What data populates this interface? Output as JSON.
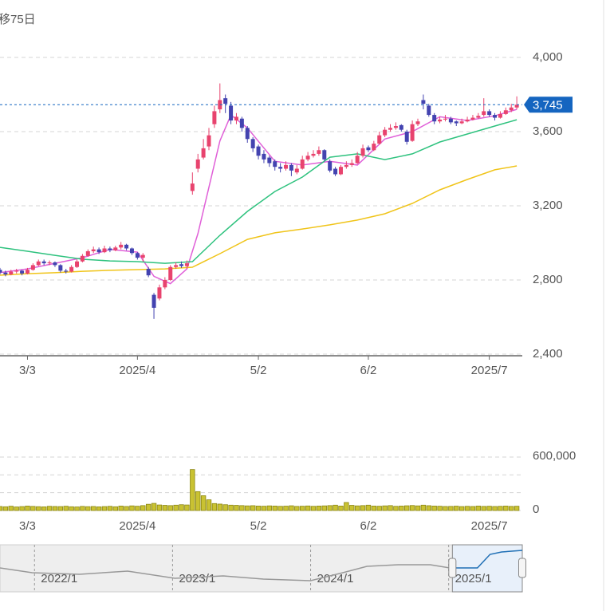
{
  "chart_data": {
    "type": "candlestick",
    "title": "移75日",
    "xlim": [
      0,
      95
    ],
    "xticks": [
      {
        "value": 5,
        "label": "3/3"
      },
      {
        "value": 25,
        "label": "2025/4"
      },
      {
        "value": 47,
        "label": "5/2"
      },
      {
        "value": 67,
        "label": "6/2"
      },
      {
        "value": 89,
        "label": "2025/7"
      }
    ],
    "ylim": [
      2400,
      4000
    ],
    "yticks": [
      {
        "value": 2400,
        "label": "2,400"
      },
      {
        "value": 2800,
        "label": "2,800"
      },
      {
        "value": 3200,
        "label": "3,200"
      },
      {
        "value": 3600,
        "label": "3,600"
      },
      {
        "value": 4000,
        "label": "4,000"
      }
    ],
    "grid": true,
    "up_color": "#e8436e",
    "down_color": "#4343b0",
    "last_price": {
      "value": 3745,
      "label": "3,745",
      "color": "#1565c0"
    },
    "ohlc": [
      [
        2855,
        2865,
        2830,
        2840
      ],
      [
        2840,
        2850,
        2820,
        2830
      ],
      [
        2830,
        2855,
        2825,
        2845
      ],
      [
        2845,
        2860,
        2835,
        2850
      ],
      [
        2850,
        2855,
        2825,
        2835
      ],
      [
        2835,
        2865,
        2830,
        2855
      ],
      [
        2855,
        2890,
        2850,
        2880
      ],
      [
        2880,
        2910,
        2875,
        2900
      ],
      [
        2900,
        2910,
        2880,
        2890
      ],
      [
        2890,
        2905,
        2880,
        2895
      ],
      [
        2895,
        2900,
        2870,
        2880
      ],
      [
        2880,
        2885,
        2840,
        2850
      ],
      [
        2850,
        2860,
        2835,
        2845
      ],
      [
        2845,
        2880,
        2840,
        2870
      ],
      [
        2870,
        2910,
        2865,
        2900
      ],
      [
        2900,
        2940,
        2895,
        2930
      ],
      [
        2930,
        2965,
        2925,
        2955
      ],
      [
        2955,
        2980,
        2945,
        2965
      ],
      [
        2965,
        2975,
        2940,
        2950
      ],
      [
        2950,
        2985,
        2945,
        2970
      ],
      [
        2970,
        2980,
        2950,
        2960
      ],
      [
        2960,
        2985,
        2955,
        2975
      ],
      [
        2975,
        3005,
        2965,
        2990
      ],
      [
        2990,
        2995,
        2960,
        2970
      ],
      [
        2970,
        2975,
        2935,
        2945
      ],
      [
        2945,
        2950,
        2910,
        2920
      ],
      [
        2920,
        2945,
        2900,
        2935
      ],
      [
        2860,
        2870,
        2815,
        2825
      ],
      [
        2720,
        2730,
        2590,
        2650
      ],
      [
        2700,
        2775,
        2690,
        2760
      ],
      [
        2760,
        2815,
        2750,
        2800
      ],
      [
        2800,
        2880,
        2795,
        2870
      ],
      [
        2870,
        2895,
        2860,
        2880
      ],
      [
        2885,
        2900,
        2865,
        2875
      ],
      [
        2875,
        2905,
        2860,
        2890
      ],
      [
        3280,
        3380,
        3260,
        3320
      ],
      [
        3400,
        3480,
        3380,
        3450
      ],
      [
        3460,
        3560,
        3450,
        3510
      ],
      [
        3520,
        3620,
        3500,
        3580
      ],
      [
        3640,
        3740,
        3620,
        3710
      ],
      [
        3720,
        3860,
        3700,
        3770
      ],
      [
        3780,
        3800,
        3700,
        3750
      ],
      [
        3740,
        3760,
        3640,
        3660
      ],
      [
        3660,
        3700,
        3640,
        3680
      ],
      [
        3670,
        3680,
        3600,
        3620
      ],
      [
        3620,
        3630,
        3540,
        3560
      ],
      [
        3560,
        3570,
        3490,
        3510
      ],
      [
        3520,
        3530,
        3450,
        3470
      ],
      [
        3480,
        3500,
        3430,
        3450
      ],
      [
        3460,
        3470,
        3410,
        3430
      ],
      [
        3440,
        3450,
        3390,
        3410
      ],
      [
        3410,
        3430,
        3380,
        3400
      ],
      [
        3400,
        3440,
        3390,
        3420
      ],
      [
        3420,
        3430,
        3360,
        3390
      ],
      [
        3380,
        3420,
        3370,
        3400
      ],
      [
        3400,
        3470,
        3395,
        3450
      ],
      [
        3450,
        3490,
        3440,
        3470
      ],
      [
        3470,
        3500,
        3460,
        3480
      ],
      [
        3480,
        3520,
        3470,
        3500
      ],
      [
        3500,
        3505,
        3440,
        3450
      ],
      [
        3440,
        3450,
        3380,
        3390
      ],
      [
        3400,
        3410,
        3360,
        3370
      ],
      [
        3370,
        3420,
        3365,
        3410
      ],
      [
        3410,
        3440,
        3400,
        3420
      ],
      [
        3420,
        3450,
        3410,
        3430
      ],
      [
        3430,
        3490,
        3425,
        3470
      ],
      [
        3470,
        3530,
        3460,
        3510
      ],
      [
        3515,
        3525,
        3490,
        3500
      ],
      [
        3500,
        3550,
        3495,
        3535
      ],
      [
        3535,
        3600,
        3530,
        3580
      ],
      [
        3580,
        3625,
        3570,
        3610
      ],
      [
        3610,
        3640,
        3600,
        3620
      ],
      [
        3620,
        3650,
        3610,
        3630
      ],
      [
        3635,
        3640,
        3600,
        3610
      ],
      [
        3600,
        3610,
        3530,
        3545
      ],
      [
        3550,
        3660,
        3545,
        3640
      ],
      [
        3640,
        3670,
        3630,
        3655
      ],
      [
        3770,
        3800,
        3720,
        3750
      ],
      [
        3740,
        3750,
        3680,
        3690
      ],
      [
        3690,
        3700,
        3640,
        3655
      ],
      [
        3655,
        3680,
        3645,
        3665
      ],
      [
        3665,
        3690,
        3655,
        3670
      ],
      [
        3670,
        3680,
        3640,
        3650
      ],
      [
        3655,
        3660,
        3630,
        3645
      ],
      [
        3645,
        3670,
        3640,
        3655
      ],
      [
        3655,
        3680,
        3650,
        3665
      ],
      [
        3665,
        3690,
        3660,
        3675
      ],
      [
        3675,
        3700,
        3670,
        3685
      ],
      [
        3690,
        3780,
        3680,
        3710
      ],
      [
        3710,
        3720,
        3680,
        3690
      ],
      [
        3690,
        3700,
        3660,
        3675
      ],
      [
        3675,
        3710,
        3670,
        3695
      ],
      [
        3695,
        3730,
        3690,
        3715
      ],
      [
        3715,
        3750,
        3705,
        3730
      ],
      [
        3730,
        3790,
        3720,
        3745
      ]
    ],
    "ma": [
      {
        "color": "#e060d8",
        "x": [
          0,
          5,
          10,
          15,
          20,
          25,
          28,
          31,
          34,
          36,
          38,
          40,
          42,
          45,
          50,
          55,
          60,
          65,
          70,
          75,
          80,
          85,
          90,
          94
        ],
        "values": [
          2840,
          2860,
          2890,
          2920,
          2965,
          2950,
          2820,
          2780,
          2860,
          3050,
          3300,
          3550,
          3690,
          3620,
          3440,
          3420,
          3440,
          3420,
          3560,
          3600,
          3680,
          3660,
          3685,
          3720
        ]
      },
      {
        "color": "#2ec27e",
        "x": [
          0,
          5,
          10,
          15,
          20,
          25,
          30,
          35,
          40,
          45,
          50,
          55,
          60,
          65,
          70,
          75,
          80,
          85,
          90,
          94
        ],
        "values": [
          2976,
          2955,
          2933,
          2912,
          2903,
          2899,
          2890,
          2899,
          3041,
          3170,
          3277,
          3355,
          3462,
          3480,
          3449,
          3480,
          3544,
          3587,
          3630,
          3664
        ]
      },
      {
        "color": "#f0c419",
        "x": [
          0,
          5,
          10,
          15,
          20,
          25,
          30,
          35,
          40,
          45,
          50,
          55,
          60,
          65,
          70,
          75,
          80,
          85,
          90,
          94
        ],
        "values": [
          2826,
          2834,
          2839,
          2847,
          2852,
          2856,
          2860,
          2869,
          2942,
          3019,
          3054,
          3075,
          3097,
          3123,
          3157,
          3213,
          3286,
          3342,
          3394,
          3415
        ]
      }
    ],
    "volume": {
      "color": "#c9c232",
      "border": "#8c8712",
      "ylim": [
        0,
        600000
      ],
      "yticks": [
        0,
        {
          "value": 600000,
          "label": "600,000"
        }
      ],
      "ygrid": [
        200000,
        400000
      ],
      "values": [
        45000,
        42000,
        48000,
        40000,
        44000,
        50000,
        46000,
        43000,
        41000,
        47000,
        45000,
        44000,
        48000,
        42000,
        40000,
        46000,
        43000,
        45000,
        41000,
        44000,
        47000,
        42000,
        50000,
        45000,
        52000,
        48000,
        55000,
        70000,
        80000,
        62000,
        58000,
        55000,
        60000,
        65000,
        62000,
        460000,
        212000,
        166000,
        120000,
        78000,
        72000,
        65000,
        60000,
        58000,
        55000,
        52000,
        54000,
        50000,
        48000,
        52000,
        50000,
        47000,
        49000,
        53000,
        46000,
        48000,
        51000,
        47000,
        50000,
        52000,
        55000,
        60000,
        50000,
        90000,
        58000,
        52000,
        55000,
        60000,
        50000,
        48000,
        52000,
        55000,
        47000,
        50000,
        53000,
        56000,
        52000,
        60000,
        54000,
        50000,
        48000,
        45000,
        46000,
        49000,
        44000,
        47000,
        45000,
        50000,
        46000,
        48000,
        45000,
        47000,
        50000,
        46000,
        48000
      ]
    },
    "navigator": {
      "xlim": [
        -3,
        42.4
      ],
      "ylim": [
        2000,
        4000
      ],
      "xticks": [
        {
          "value": 0,
          "label": "2022/1"
        },
        {
          "value": 12,
          "label": "2023/1"
        },
        {
          "value": 24,
          "label": "2024/1"
        },
        {
          "value": 36,
          "label": "2025/1"
        }
      ],
      "series": [
        {
          "color": "#999999",
          "x": [
            -3,
            -0.2,
            3.9,
            8.1,
            12.2,
            16.4,
            19.9,
            24,
            26.8,
            28.9,
            31.6,
            34.4,
            36.1
          ],
          "values": [
            3017,
            2814,
            2746,
            2881,
            2576,
            2678,
            2542,
            2475,
            2814,
            3085,
            3153,
            3153,
            3017
          ]
        },
        {
          "color": "#1f6fb5",
          "x": [
            36.6,
            38.5,
            39.6,
            40.6,
            42.4
          ],
          "values": [
            3017,
            3017,
            3593,
            3695,
            3763
          ]
        }
      ]
    }
  }
}
